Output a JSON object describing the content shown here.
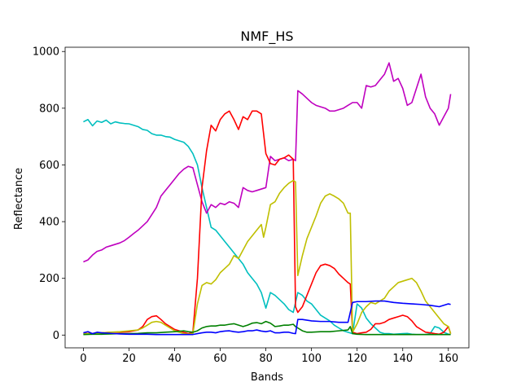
{
  "chart_data": {
    "type": "line",
    "title": "NMF_HS",
    "xlabel": "Bands",
    "ylabel": "Reflectance",
    "xlim": [
      -8,
      169
    ],
    "ylim": [
      -45,
      1015
    ],
    "xticks": [
      0,
      20,
      40,
      60,
      80,
      100,
      120,
      140,
      160
    ],
    "yticks": [
      0,
      200,
      400,
      600,
      800,
      1000
    ],
    "grid": false,
    "legend": "none",
    "series": [
      {
        "color": "#00bfbf",
        "x": [
          0,
          2,
          4,
          6,
          8,
          10,
          12,
          14,
          16,
          18,
          20,
          22,
          24,
          26,
          28,
          30,
          32,
          34,
          36,
          38,
          40,
          42,
          44,
          46,
          48,
          50,
          52,
          54,
          56,
          58,
          60,
          62,
          64,
          66,
          68,
          70,
          72,
          74,
          76,
          78,
          80,
          82,
          84,
          86,
          88,
          90,
          92,
          94,
          96,
          98,
          100,
          102,
          104,
          106,
          108,
          110,
          112,
          114,
          116,
          118,
          120,
          122,
          124,
          126,
          128,
          130,
          132,
          134,
          136,
          138,
          140,
          142,
          144,
          146,
          148,
          150,
          152,
          154,
          156,
          158,
          160,
          161
        ],
        "y": [
          752,
          760,
          738,
          755,
          750,
          758,
          745,
          752,
          748,
          746,
          745,
          740,
          735,
          725,
          722,
          710,
          705,
          705,
          700,
          698,
          690,
          685,
          680,
          665,
          640,
          600,
          520,
          450,
          380,
          370,
          350,
          330,
          310,
          290,
          270,
          250,
          220,
          200,
          180,
          150,
          95,
          150,
          140,
          125,
          110,
          90,
          80,
          150,
          140,
          120,
          110,
          90,
          70,
          60,
          50,
          35,
          25,
          15,
          10,
          5,
          110,
          95,
          60,
          40,
          25,
          10,
          5,
          5,
          3,
          4,
          5,
          6,
          3,
          2,
          2,
          2,
          5,
          30,
          25,
          10,
          3,
          2
        ]
      },
      {
        "color": "#bf00bf",
        "x": [
          0,
          2,
          4,
          6,
          8,
          10,
          12,
          14,
          16,
          18,
          20,
          22,
          24,
          26,
          28,
          30,
          32,
          34,
          36,
          38,
          40,
          42,
          44,
          46,
          48,
          50,
          52,
          54,
          56,
          58,
          60,
          62,
          64,
          66,
          68,
          70,
          72,
          74,
          76,
          78,
          80,
          82,
          84,
          86,
          88,
          90,
          92,
          93,
          94,
          96,
          98,
          100,
          102,
          104,
          106,
          108,
          110,
          112,
          114,
          116,
          118,
          120,
          122,
          124,
          126,
          128,
          130,
          132,
          134,
          136,
          138,
          140,
          142,
          144,
          146,
          148,
          150,
          152,
          154,
          156,
          158,
          160,
          161
        ],
        "y": [
          258,
          265,
          282,
          295,
          300,
          310,
          315,
          320,
          325,
          333,
          345,
          358,
          370,
          385,
          400,
          425,
          450,
          490,
          510,
          530,
          550,
          570,
          585,
          595,
          590,
          530,
          470,
          430,
          460,
          450,
          465,
          460,
          470,
          465,
          450,
          520,
          510,
          505,
          510,
          515,
          520,
          630,
          615,
          620,
          625,
          615,
          620,
          615,
          862,
          850,
          835,
          820,
          810,
          805,
          800,
          790,
          790,
          795,
          800,
          810,
          820,
          820,
          800,
          880,
          875,
          880,
          900,
          920,
          960,
          895,
          905,
          870,
          810,
          820,
          870,
          920,
          840,
          800,
          780,
          740,
          770,
          800,
          850
        ]
      },
      {
        "color": "#ff0000",
        "x": [
          0,
          4,
          8,
          12,
          16,
          20,
          24,
          26,
          28,
          30,
          32,
          34,
          36,
          38,
          40,
          42,
          44,
          46,
          48,
          50,
          52,
          54,
          56,
          58,
          60,
          62,
          64,
          66,
          68,
          70,
          72,
          74,
          76,
          78,
          80,
          82,
          84,
          86,
          88,
          90,
          92,
          93,
          94,
          96,
          98,
          100,
          102,
          104,
          106,
          108,
          110,
          112,
          114,
          116,
          117,
          118,
          120,
          122,
          124,
          126,
          128,
          130,
          132,
          134,
          136,
          138,
          140,
          142,
          144,
          146,
          148,
          150,
          152,
          154,
          156,
          158,
          160,
          161
        ],
        "y": [
          5,
          6,
          8,
          10,
          10,
          12,
          18,
          30,
          55,
          65,
          68,
          55,
          40,
          30,
          20,
          15,
          10,
          5,
          10,
          200,
          520,
          650,
          740,
          720,
          760,
          780,
          790,
          760,
          725,
          770,
          760,
          790,
          790,
          780,
          640,
          605,
          600,
          620,
          625,
          635,
          620,
          100,
          80,
          100,
          140,
          180,
          220,
          245,
          250,
          245,
          235,
          215,
          200,
          185,
          180,
          10,
          5,
          8,
          10,
          20,
          40,
          40,
          45,
          55,
          60,
          65,
          70,
          65,
          50,
          30,
          20,
          10,
          8,
          5,
          3,
          10,
          30,
          5
        ]
      },
      {
        "color": "#bfbf00",
        "x": [
          0,
          4,
          8,
          12,
          16,
          20,
          24,
          26,
          28,
          30,
          32,
          34,
          36,
          38,
          40,
          42,
          44,
          46,
          48,
          50,
          52,
          54,
          56,
          58,
          60,
          62,
          64,
          66,
          68,
          70,
          72,
          74,
          76,
          78,
          79,
          80,
          82,
          84,
          86,
          88,
          90,
          92,
          93,
          94,
          96,
          98,
          100,
          102,
          104,
          106,
          108,
          110,
          112,
          114,
          116,
          117,
          118,
          120,
          122,
          124,
          126,
          128,
          130,
          132,
          134,
          136,
          138,
          140,
          142,
          144,
          146,
          148,
          150,
          152,
          154,
          156,
          158,
          160,
          161
        ],
        "y": [
          4,
          6,
          8,
          10,
          12,
          15,
          18,
          25,
          35,
          45,
          48,
          45,
          35,
          25,
          15,
          10,
          5,
          3,
          5,
          110,
          175,
          185,
          180,
          195,
          220,
          235,
          250,
          280,
          270,
          300,
          330,
          350,
          370,
          390,
          345,
          380,
          460,
          470,
          500,
          520,
          535,
          545,
          540,
          210,
          280,
          340,
          380,
          420,
          465,
          490,
          498,
          490,
          480,
          465,
          430,
          430,
          10,
          40,
          80,
          100,
          115,
          110,
          120,
          130,
          155,
          170,
          185,
          190,
          195,
          200,
          185,
          155,
          120,
          100,
          80,
          60,
          40,
          30,
          5
        ]
      },
      {
        "color": "#008000",
        "x": [
          0,
          4,
          8,
          12,
          16,
          20,
          24,
          28,
          32,
          36,
          40,
          44,
          46,
          48,
          50,
          52,
          54,
          56,
          58,
          60,
          62,
          64,
          66,
          68,
          70,
          72,
          74,
          76,
          78,
          80,
          82,
          84,
          86,
          88,
          90,
          92,
          93,
          94,
          96,
          98,
          100,
          104,
          108,
          112,
          116,
          117,
          118,
          120,
          124,
          128,
          132,
          136,
          140,
          144,
          148,
          152,
          156,
          160,
          161
        ],
        "y": [
          2,
          3,
          3,
          4,
          5,
          5,
          6,
          8,
          8,
          10,
          12,
          15,
          12,
          10,
          15,
          25,
          30,
          32,
          32,
          35,
          35,
          38,
          40,
          35,
          30,
          35,
          42,
          44,
          40,
          48,
          42,
          30,
          32,
          35,
          35,
          38,
          30,
          25,
          15,
          10,
          10,
          12,
          12,
          15,
          18,
          30,
          5,
          3,
          2,
          2,
          2,
          2,
          2,
          2,
          2,
          2,
          2,
          2,
          2
        ]
      },
      {
        "color": "#0000ff",
        "x": [
          0,
          2,
          4,
          6,
          8,
          12,
          16,
          20,
          24,
          28,
          32,
          36,
          40,
          44,
          46,
          48,
          50,
          52,
          54,
          56,
          58,
          60,
          62,
          64,
          66,
          68,
          70,
          72,
          74,
          76,
          78,
          80,
          82,
          84,
          86,
          88,
          90,
          92,
          93,
          94,
          96,
          100,
          104,
          108,
          112,
          116,
          117,
          118,
          120,
          124,
          128,
          132,
          136,
          140,
          144,
          148,
          152,
          156,
          160,
          161
        ],
        "y": [
          8,
          12,
          5,
          10,
          8,
          6,
          4,
          3,
          3,
          3,
          2,
          2,
          2,
          2,
          2,
          2,
          5,
          8,
          10,
          10,
          8,
          12,
          14,
          15,
          12,
          10,
          12,
          15,
          15,
          18,
          14,
          12,
          15,
          8,
          8,
          10,
          10,
          6,
          5,
          55,
          55,
          50,
          48,
          48,
          45,
          45,
          80,
          115,
          118,
          118,
          120,
          120,
          115,
          112,
          110,
          108,
          105,
          100,
          110,
          108
        ]
      }
    ]
  }
}
